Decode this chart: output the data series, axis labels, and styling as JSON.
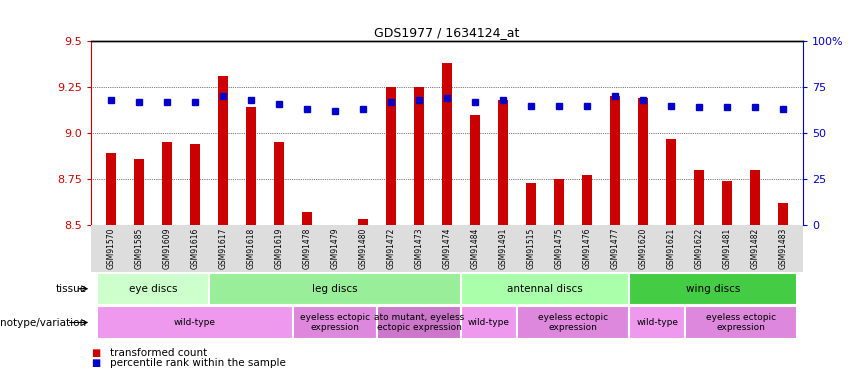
{
  "title": "GDS1977 / 1634124_at",
  "samples": [
    "GSM91570",
    "GSM91585",
    "GSM91609",
    "GSM91616",
    "GSM91617",
    "GSM91618",
    "GSM91619",
    "GSM91478",
    "GSM91479",
    "GSM91480",
    "GSM91472",
    "GSM91473",
    "GSM91474",
    "GSM91484",
    "GSM91491",
    "GSM91515",
    "GSM91475",
    "GSM91476",
    "GSM91477",
    "GSM91620",
    "GSM91621",
    "GSM91622",
    "GSM91481",
    "GSM91482",
    "GSM91483"
  ],
  "bar_values": [
    8.89,
    8.86,
    8.95,
    8.94,
    9.31,
    9.14,
    8.95,
    8.57,
    8.5,
    8.53,
    9.25,
    9.25,
    9.38,
    9.1,
    9.18,
    8.73,
    8.75,
    8.77,
    9.2,
    9.19,
    8.97,
    8.8,
    8.74,
    8.8,
    8.62
  ],
  "percentile_values": [
    68,
    67,
    67,
    67,
    70,
    68,
    66,
    63,
    62,
    63,
    67,
    68,
    69,
    67,
    68,
    65,
    65,
    65,
    70,
    68,
    65,
    64,
    64,
    64,
    63
  ],
  "ymin": 8.5,
  "ymax": 9.5,
  "yticks": [
    8.5,
    8.75,
    9.0,
    9.25,
    9.5
  ],
  "right_yticks": [
    0,
    25,
    50,
    75,
    100
  ],
  "right_ylabels": [
    "0",
    "25",
    "50",
    "75",
    "100%"
  ],
  "bar_color": "#cc0000",
  "dot_color": "#0000cc",
  "tissue_groups": [
    {
      "label": "eye discs",
      "start": 0,
      "end": 4,
      "color": "#ccffcc"
    },
    {
      "label": "leg discs",
      "start": 4,
      "end": 13,
      "color": "#99ee99"
    },
    {
      "label": "antennal discs",
      "start": 13,
      "end": 19,
      "color": "#aaffaa"
    },
    {
      "label": "wing discs",
      "start": 19,
      "end": 25,
      "color": "#44cc44"
    }
  ],
  "genotype_groups": [
    {
      "label": "wild-type",
      "start": 0,
      "end": 7,
      "color": "#ee99ee"
    },
    {
      "label": "eyeless ectopic\nexpression",
      "start": 7,
      "end": 10,
      "color": "#dd88dd"
    },
    {
      "label": "ato mutant, eyeless\nectopic expression",
      "start": 10,
      "end": 13,
      "color": "#cc77cc"
    },
    {
      "label": "wild-type",
      "start": 13,
      "end": 15,
      "color": "#ee99ee"
    },
    {
      "label": "eyeless ectopic\nexpression",
      "start": 15,
      "end": 19,
      "color": "#dd88dd"
    },
    {
      "label": "wild-type",
      "start": 19,
      "end": 21,
      "color": "#ee99ee"
    },
    {
      "label": "eyeless ectopic\nexpression",
      "start": 21,
      "end": 25,
      "color": "#dd88dd"
    }
  ],
  "legend_items": [
    {
      "label": "transformed count",
      "color": "#cc0000"
    },
    {
      "label": "percentile rank within the sample",
      "color": "#0000cc"
    }
  ],
  "bg_color": "#dddddd"
}
